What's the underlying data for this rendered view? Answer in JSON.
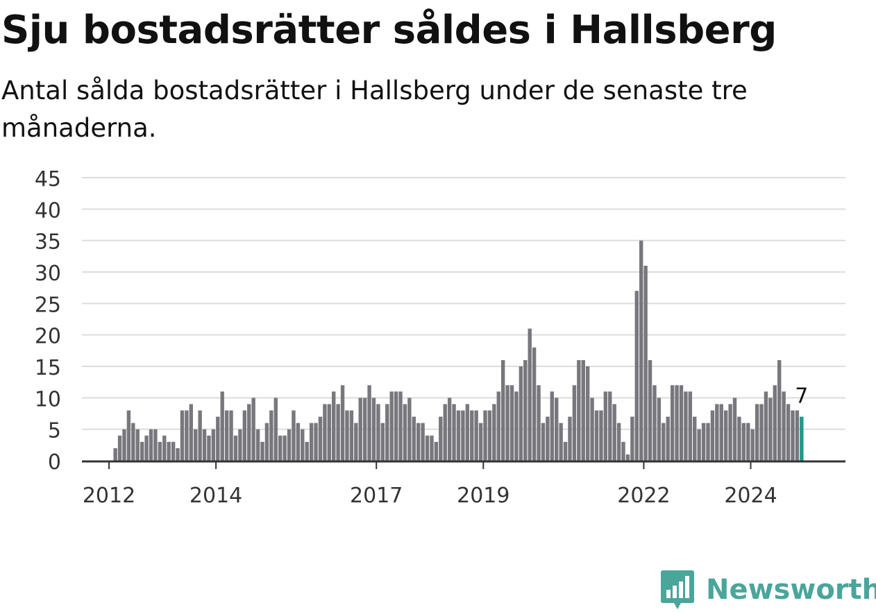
{
  "title": "Sju bostadsrätter såldes i Hallsberg",
  "subtitle": "Antal sålda bostadsrätter i Hallsberg under de senaste tre månaderna.",
  "brand": {
    "name": "Newsworthy",
    "color": "#4aa59b",
    "icon": "bar-chart-speech-bubble-icon"
  },
  "chart_data": {
    "type": "bar",
    "title": "",
    "xlabel": "",
    "ylabel": "",
    "ylim": [
      0,
      45
    ],
    "y_ticks": [
      0,
      5,
      10,
      15,
      20,
      25,
      30,
      35,
      40,
      45
    ],
    "grid": true,
    "start_year": 2011.5,
    "x_ticks": [
      {
        "label": "2012",
        "year": 2012
      },
      {
        "label": "2014",
        "year": 2014
      },
      {
        "label": "2017",
        "year": 2017
      },
      {
        "label": "2019",
        "year": 2019
      },
      {
        "label": "2022",
        "year": 2022
      },
      {
        "label": "2024",
        "year": 2024
      }
    ],
    "bar_color": "#78777d",
    "highlight_color": "#1d9a8c",
    "highlight_label": "7",
    "series": [
      {
        "values": [
          0,
          0,
          0,
          0,
          0,
          0,
          0,
          2,
          4,
          5,
          8,
          6,
          5,
          3,
          4,
          5,
          5,
          3,
          4,
          3,
          3,
          2,
          8,
          8,
          9,
          5,
          8,
          5,
          4,
          5,
          7,
          11,
          8,
          8,
          4,
          5,
          8,
          9,
          10,
          5,
          3,
          6,
          8,
          10,
          4,
          4,
          5,
          8,
          6,
          5,
          3,
          6,
          6,
          7,
          9,
          9,
          11,
          9,
          12,
          8,
          8,
          6,
          10,
          10,
          12,
          10,
          9,
          6,
          9,
          11,
          11,
          11,
          9,
          10,
          7,
          6,
          6,
          4,
          4,
          3,
          7,
          9,
          10,
          9,
          8,
          8,
          9,
          8,
          8,
          6,
          8,
          8,
          9,
          11,
          16,
          12,
          12,
          11,
          15,
          16,
          21,
          18,
          12,
          6,
          7,
          11,
          10,
          6,
          3,
          7,
          12,
          16,
          16,
          15,
          10,
          8,
          8,
          11,
          11,
          9,
          6,
          3,
          1,
          7,
          27,
          35,
          31,
          16,
          12,
          10,
          6,
          7,
          12,
          12,
          12,
          11,
          11,
          7,
          5,
          6,
          6,
          8,
          9,
          9,
          8,
          9,
          10,
          7,
          6,
          6,
          5,
          9,
          9,
          11,
          10,
          12,
          16,
          11,
          9,
          8,
          8,
          7
        ]
      }
    ]
  }
}
